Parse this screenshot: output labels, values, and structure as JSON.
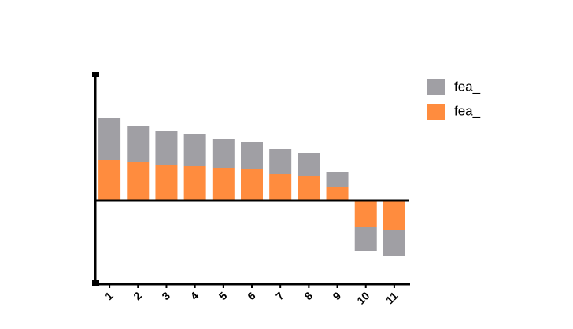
{
  "chart_data": {
    "type": "stacked-bar",
    "categories": [
      "1",
      "2",
      "3",
      "4",
      "5",
      "6",
      "7",
      "8",
      "9",
      "10",
      "11"
    ],
    "series": [
      {
        "name": "fea_",
        "color": "#a09fa4",
        "values": [
          53,
          46,
          43,
          41,
          37,
          35,
          32,
          29,
          19,
          -30,
          -33
        ]
      },
      {
        "name": "fea_",
        "color": "#ff8c3e",
        "values": [
          52,
          49,
          45,
          44,
          42,
          40,
          34,
          31,
          17,
          -34,
          -37
        ]
      }
    ],
    "ylim": [
      -105,
      160
    ]
  }
}
